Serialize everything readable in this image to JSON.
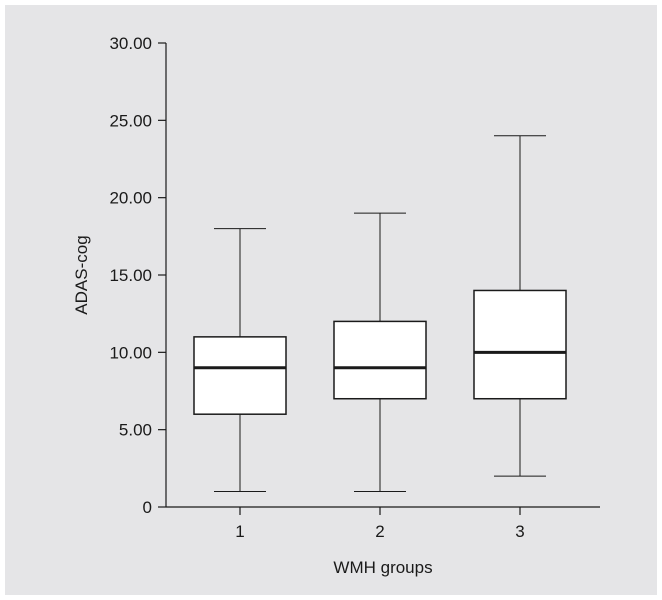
{
  "chart_data": {
    "type": "box",
    "title": "",
    "xlabel": "WMH groups",
    "ylabel": "ADAS-cog",
    "ylim": [
      0,
      30
    ],
    "yticks": [
      0,
      5,
      10,
      15,
      20,
      25,
      30
    ],
    "ytick_labels": [
      "0",
      "5.00",
      "10.00",
      "15.00",
      "20.00",
      "25.00",
      "30.00"
    ],
    "categories": [
      "1",
      "2",
      "3"
    ],
    "boxes": [
      {
        "category": "1",
        "min": 1,
        "q1": 6,
        "median": 9,
        "q3": 11,
        "max": 18
      },
      {
        "category": "2",
        "min": 1,
        "q1": 7,
        "median": 9,
        "q3": 12,
        "max": 19
      },
      {
        "category": "3",
        "min": 2,
        "q1": 7,
        "median": 10,
        "q3": 14,
        "max": 24
      }
    ],
    "grid": false,
    "colors": {
      "background": "#e5e5e7",
      "box_fill": "#ffffff",
      "stroke": "#1a1a1a"
    }
  }
}
